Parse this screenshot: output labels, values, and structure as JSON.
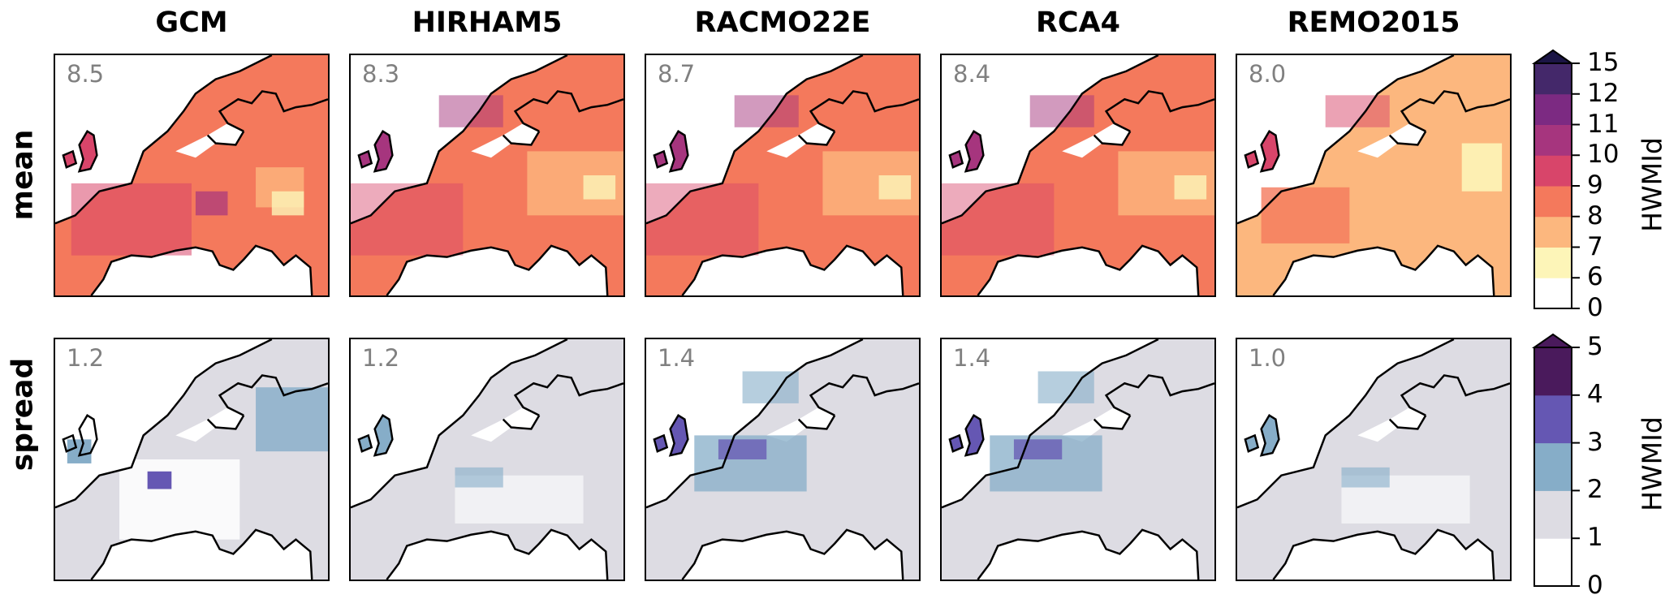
{
  "columns": [
    "GCM",
    "HIRHAM5",
    "RACMO22E",
    "RCA4",
    "REMO2015"
  ],
  "rows": [
    "mean",
    "spread"
  ],
  "panel_values": {
    "mean": [
      "8.5",
      "8.3",
      "8.7",
      "8.4",
      "8.0"
    ],
    "spread": [
      "1.2",
      "1.2",
      "1.4",
      "1.4",
      "1.0"
    ]
  },
  "colorbars": {
    "mean": {
      "label": "HWMId",
      "ticks": [
        "15",
        "12",
        "11",
        "10",
        "9",
        "8",
        "7",
        "6",
        "0"
      ],
      "colors": [
        "#ffffff",
        "#fdf5b8",
        "#fcb77e",
        "#f4795c",
        "#d8456a",
        "#a6357e",
        "#7c2a82",
        "#44286a",
        "#1b1545"
      ]
    },
    "spread": {
      "label": "HWMId",
      "ticks": [
        "5",
        "4",
        "3",
        "2",
        "1",
        "0"
      ],
      "colors": [
        "#ffffff",
        "#dddce3",
        "#86adc8",
        "#6557b3",
        "#4a1a5c"
      ]
    }
  }
}
